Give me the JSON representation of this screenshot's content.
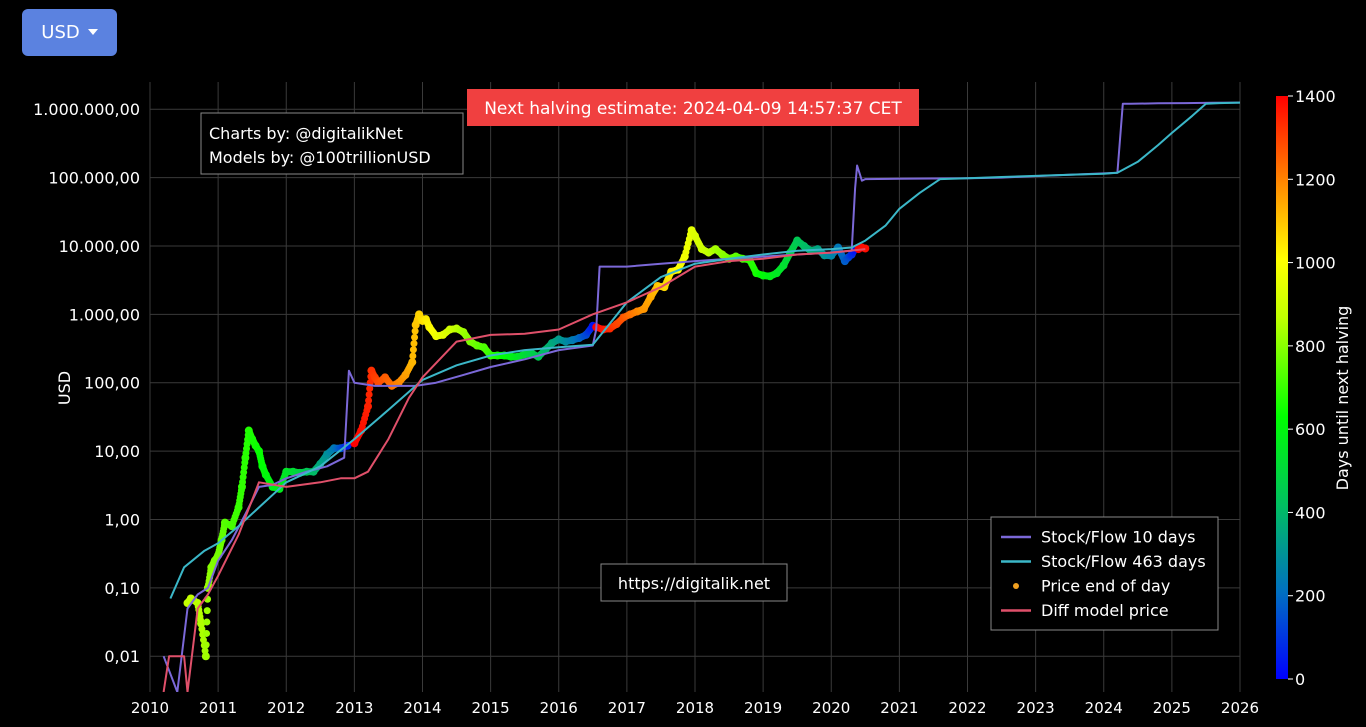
{
  "currency_selector": {
    "label": "USD"
  },
  "credits": {
    "line1": "Charts by: @digitalikNet",
    "line2": "Models by: @100trillionUSD"
  },
  "halving_banner": "Next halving estimate: 2024-04-09 14:57:37 CET",
  "watermark": "https://digitalik.net",
  "colors": {
    "stock_flow_10": "#7b68d8",
    "stock_flow_463": "#3bb7c8",
    "diff_model": "#e0506a",
    "banner_bg": "#f04040",
    "watermark_text": "#9fe35a"
  },
  "chart_data": {
    "type": "line",
    "ylabel": "USD",
    "yscale": "log",
    "ylim": [
      0.003,
      2500000
    ],
    "xlim": [
      2010,
      2026
    ],
    "x_ticks": [
      "2010",
      "2011",
      "2012",
      "2013",
      "2014",
      "2015",
      "2016",
      "2017",
      "2018",
      "2019",
      "2020",
      "2021",
      "2022",
      "2023",
      "2024",
      "2025",
      "2026"
    ],
    "y_ticks": [
      {
        "value": 0.01,
        "label": "0,01"
      },
      {
        "value": 0.1,
        "label": "0,10"
      },
      {
        "value": 1,
        "label": "1,00"
      },
      {
        "value": 10,
        "label": "10,00"
      },
      {
        "value": 100,
        "label": "100,00"
      },
      {
        "value": 1000,
        "label": "1.000,00"
      },
      {
        "value": 10000,
        "label": "10.000,00"
      },
      {
        "value": 100000,
        "label": "100.000,00"
      },
      {
        "value": 1000000,
        "label": "1.000.000,00"
      }
    ],
    "legend_position": "bottom-right",
    "colorbar": {
      "label": "Days until next halving",
      "range": [
        0,
        1400
      ],
      "ticks": [
        "0",
        "200",
        "400",
        "600",
        "800",
        "1000",
        "1200",
        "1400"
      ]
    },
    "series": [
      {
        "name": "Stock/Flow 10 days",
        "x": [
          2010.2,
          2010.4,
          2010.55,
          2010.7,
          2010.85,
          2011.0,
          2011.2,
          2011.4,
          2011.6,
          2011.8,
          2012.0,
          2012.3,
          2012.6,
          2012.85,
          2012.92,
          2013.0,
          2013.3,
          2013.6,
          2013.9,
          2014.2,
          2014.6,
          2015.0,
          2015.5,
          2016.0,
          2016.5,
          2016.55,
          2016.6,
          2017.0,
          2017.5,
          2018.0,
          2018.5,
          2019.0,
          2019.5,
          2020.0,
          2020.3,
          2020.35,
          2020.38,
          2020.45,
          2020.5,
          2021.0,
          2021.5,
          2022.0,
          2022.5,
          2023.0,
          2023.5,
          2024.0,
          2024.2,
          2024.28,
          2024.4,
          2024.8,
          2025.2,
          2025.6,
          2026.0
        ],
        "y": [
          0.01,
          0.003,
          0.05,
          0.08,
          0.1,
          0.25,
          0.5,
          1.2,
          3,
          3.2,
          4,
          5,
          6,
          8,
          150,
          100,
          90,
          90,
          90,
          100,
          130,
          170,
          220,
          300,
          350,
          600,
          5000,
          5000,
          5500,
          6000,
          6500,
          7000,
          7500,
          8000,
          8500,
          70000,
          150000,
          90000,
          95000,
          96000,
          97000,
          98000,
          100000,
          105000,
          110000,
          115000,
          118000,
          1200000,
          1200000,
          1220000,
          1230000,
          1240000,
          1250000
        ]
      },
      {
        "name": "Stock/Flow 463 days",
        "x": [
          2010.3,
          2010.5,
          2010.8,
          2011.0,
          2011.3,
          2011.6,
          2012.0,
          2012.5,
          2013.0,
          2013.5,
          2014.0,
          2014.5,
          2015.0,
          2015.5,
          2016.0,
          2016.5,
          2017.0,
          2017.5,
          2018.0,
          2018.5,
          2019.0,
          2019.5,
          2020.0,
          2020.3,
          2020.5,
          2020.8,
          2021.0,
          2021.3,
          2021.6,
          2022.0,
          2022.5,
          2023.0,
          2023.5,
          2024.0,
          2024.2,
          2024.5,
          2024.8,
          2025.0,
          2025.3,
          2025.5,
          2025.7,
          2026.0
        ],
        "y": [
          0.07,
          0.2,
          0.35,
          0.45,
          0.8,
          1.5,
          3.5,
          6,
          15,
          40,
          110,
          180,
          250,
          300,
          330,
          360,
          1500,
          3500,
          5500,
          6500,
          7500,
          8500,
          9000,
          9500,
          12000,
          20000,
          35000,
          60000,
          95000,
          98000,
          102000,
          106000,
          110000,
          114000,
          118000,
          170000,
          300000,
          450000,
          800000,
          1200000,
          1230000,
          1250000
        ]
      },
      {
        "name": "Diff model price",
        "x": [
          2010.2,
          2010.28,
          2010.3,
          2010.5,
          2010.55,
          2010.7,
          2010.85,
          2011.0,
          2011.3,
          2011.6,
          2012.0,
          2012.5,
          2012.8,
          2013.0,
          2013.2,
          2013.5,
          2013.8,
          2014.0,
          2014.5,
          2015.0,
          2015.5,
          2016.0,
          2016.5,
          2017.0,
          2017.5,
          2018.0,
          2018.5,
          2019.0,
          2019.5,
          2020.0,
          2020.5
        ],
        "y": [
          0.003,
          0.01,
          0.01,
          0.01,
          0.003,
          0.05,
          0.08,
          0.15,
          0.6,
          3.5,
          3,
          3.5,
          4,
          4,
          5,
          15,
          60,
          120,
          400,
          500,
          520,
          600,
          1000,
          1500,
          2500,
          5000,
          6000,
          6500,
          7500,
          8000,
          9000
        ]
      }
    ],
    "scatter": {
      "name": "Price end of day",
      "color_by": "Days until next halving",
      "points": [
        {
          "x": 2010.55,
          "y": 0.06,
          "d": 880
        },
        {
          "x": 2010.6,
          "y": 0.07,
          "d": 875
        },
        {
          "x": 2010.7,
          "y": 0.06,
          "d": 860
        },
        {
          "x": 2010.75,
          "y": 0.03,
          "d": 850
        },
        {
          "x": 2010.82,
          "y": 0.01,
          "d": 830
        },
        {
          "x": 2010.85,
          "y": 0.1,
          "d": 820
        },
        {
          "x": 2010.9,
          "y": 0.2,
          "d": 800
        },
        {
          "x": 2010.95,
          "y": 0.25,
          "d": 790
        },
        {
          "x": 2011.0,
          "y": 0.3,
          "d": 780
        },
        {
          "x": 2011.05,
          "y": 0.5,
          "d": 760
        },
        {
          "x": 2011.1,
          "y": 0.9,
          "d": 740
        },
        {
          "x": 2011.2,
          "y": 0.8,
          "d": 720
        },
        {
          "x": 2011.3,
          "y": 1.5,
          "d": 700
        },
        {
          "x": 2011.35,
          "y": 3,
          "d": 690
        },
        {
          "x": 2011.4,
          "y": 8,
          "d": 680
        },
        {
          "x": 2011.45,
          "y": 20,
          "d": 670
        },
        {
          "x": 2011.5,
          "y": 15,
          "d": 660
        },
        {
          "x": 2011.55,
          "y": 12,
          "d": 650
        },
        {
          "x": 2011.6,
          "y": 10,
          "d": 640
        },
        {
          "x": 2011.65,
          "y": 6,
          "d": 630
        },
        {
          "x": 2011.7,
          "y": 4.5,
          "d": 610
        },
        {
          "x": 2011.8,
          "y": 3,
          "d": 590
        },
        {
          "x": 2011.9,
          "y": 2.8,
          "d": 570
        },
        {
          "x": 2012.0,
          "y": 5,
          "d": 550
        },
        {
          "x": 2012.1,
          "y": 5,
          "d": 520
        },
        {
          "x": 2012.2,
          "y": 4.8,
          "d": 490
        },
        {
          "x": 2012.3,
          "y": 5,
          "d": 450
        },
        {
          "x": 2012.4,
          "y": 5,
          "d": 410
        },
        {
          "x": 2012.5,
          "y": 6.5,
          "d": 360
        },
        {
          "x": 2012.6,
          "y": 9,
          "d": 300
        },
        {
          "x": 2012.7,
          "y": 11,
          "d": 240
        },
        {
          "x": 2012.8,
          "y": 11,
          "d": 160
        },
        {
          "x": 2012.9,
          "y": 12,
          "d": 60
        },
        {
          "x": 2013.0,
          "y": 13,
          "d": 1400
        },
        {
          "x": 2013.1,
          "y": 20,
          "d": 1380
        },
        {
          "x": 2013.2,
          "y": 45,
          "d": 1350
        },
        {
          "x": 2013.25,
          "y": 150,
          "d": 1330
        },
        {
          "x": 2013.3,
          "y": 120,
          "d": 1310
        },
        {
          "x": 2013.35,
          "y": 100,
          "d": 1290
        },
        {
          "x": 2013.45,
          "y": 120,
          "d": 1260
        },
        {
          "x": 2013.55,
          "y": 90,
          "d": 1230
        },
        {
          "x": 2013.65,
          "y": 100,
          "d": 1200
        },
        {
          "x": 2013.75,
          "y": 130,
          "d": 1160
        },
        {
          "x": 2013.85,
          "y": 200,
          "d": 1120
        },
        {
          "x": 2013.9,
          "y": 700,
          "d": 1100
        },
        {
          "x": 2013.95,
          "y": 1000,
          "d": 1080
        },
        {
          "x": 2014.0,
          "y": 800,
          "d": 1060
        },
        {
          "x": 2014.05,
          "y": 850,
          "d": 1040
        },
        {
          "x": 2014.1,
          "y": 650,
          "d": 1020
        },
        {
          "x": 2014.2,
          "y": 480,
          "d": 980
        },
        {
          "x": 2014.3,
          "y": 500,
          "d": 950
        },
        {
          "x": 2014.4,
          "y": 600,
          "d": 910
        },
        {
          "x": 2014.5,
          "y": 620,
          "d": 870
        },
        {
          "x": 2014.6,
          "y": 550,
          "d": 830
        },
        {
          "x": 2014.7,
          "y": 400,
          "d": 790
        },
        {
          "x": 2014.8,
          "y": 350,
          "d": 760
        },
        {
          "x": 2014.9,
          "y": 330,
          "d": 730
        },
        {
          "x": 2015.0,
          "y": 250,
          "d": 700
        },
        {
          "x": 2015.1,
          "y": 250,
          "d": 660
        },
        {
          "x": 2015.2,
          "y": 250,
          "d": 630
        },
        {
          "x": 2015.3,
          "y": 240,
          "d": 600
        },
        {
          "x": 2015.4,
          "y": 240,
          "d": 560
        },
        {
          "x": 2015.5,
          "y": 260,
          "d": 520
        },
        {
          "x": 2015.6,
          "y": 270,
          "d": 480
        },
        {
          "x": 2015.7,
          "y": 240,
          "d": 450
        },
        {
          "x": 2015.8,
          "y": 300,
          "d": 410
        },
        {
          "x": 2015.9,
          "y": 380,
          "d": 370
        },
        {
          "x": 2016.0,
          "y": 430,
          "d": 330
        },
        {
          "x": 2016.1,
          "y": 400,
          "d": 290
        },
        {
          "x": 2016.2,
          "y": 420,
          "d": 250
        },
        {
          "x": 2016.3,
          "y": 450,
          "d": 200
        },
        {
          "x": 2016.4,
          "y": 500,
          "d": 140
        },
        {
          "x": 2016.5,
          "y": 680,
          "d": 40
        },
        {
          "x": 2016.55,
          "y": 650,
          "d": 1400
        },
        {
          "x": 2016.65,
          "y": 600,
          "d": 1370
        },
        {
          "x": 2016.75,
          "y": 620,
          "d": 1340
        },
        {
          "x": 2016.85,
          "y": 720,
          "d": 1300
        },
        {
          "x": 2016.95,
          "y": 900,
          "d": 1270
        },
        {
          "x": 2017.05,
          "y": 1000,
          "d": 1230
        },
        {
          "x": 2017.15,
          "y": 1100,
          "d": 1200
        },
        {
          "x": 2017.25,
          "y": 1200,
          "d": 1170
        },
        {
          "x": 2017.35,
          "y": 1800,
          "d": 1140
        },
        {
          "x": 2017.45,
          "y": 2600,
          "d": 1100
        },
        {
          "x": 2017.55,
          "y": 2500,
          "d": 1070
        },
        {
          "x": 2017.65,
          "y": 4200,
          "d": 1040
        },
        {
          "x": 2017.75,
          "y": 4500,
          "d": 1010
        },
        {
          "x": 2017.85,
          "y": 7000,
          "d": 980
        },
        {
          "x": 2017.95,
          "y": 17000,
          "d": 950
        },
        {
          "x": 2018.0,
          "y": 14000,
          "d": 930
        },
        {
          "x": 2018.1,
          "y": 9000,
          "d": 900
        },
        {
          "x": 2018.2,
          "y": 8000,
          "d": 870
        },
        {
          "x": 2018.3,
          "y": 9000,
          "d": 840
        },
        {
          "x": 2018.4,
          "y": 7500,
          "d": 810
        },
        {
          "x": 2018.5,
          "y": 6500,
          "d": 780
        },
        {
          "x": 2018.6,
          "y": 7000,
          "d": 750
        },
        {
          "x": 2018.7,
          "y": 6500,
          "d": 720
        },
        {
          "x": 2018.8,
          "y": 6300,
          "d": 690
        },
        {
          "x": 2018.9,
          "y": 4000,
          "d": 660
        },
        {
          "x": 2019.0,
          "y": 3700,
          "d": 620
        },
        {
          "x": 2019.1,
          "y": 3600,
          "d": 590
        },
        {
          "x": 2019.2,
          "y": 4000,
          "d": 560
        },
        {
          "x": 2019.3,
          "y": 5200,
          "d": 530
        },
        {
          "x": 2019.4,
          "y": 8000,
          "d": 490
        },
        {
          "x": 2019.5,
          "y": 12000,
          "d": 450
        },
        {
          "x": 2019.6,
          "y": 10000,
          "d": 420
        },
        {
          "x": 2019.7,
          "y": 8500,
          "d": 390
        },
        {
          "x": 2019.8,
          "y": 9000,
          "d": 350
        },
        {
          "x": 2019.9,
          "y": 7300,
          "d": 310
        },
        {
          "x": 2020.0,
          "y": 7200,
          "d": 270
        },
        {
          "x": 2020.1,
          "y": 9500,
          "d": 230
        },
        {
          "x": 2020.2,
          "y": 6000,
          "d": 180
        },
        {
          "x": 2020.25,
          "y": 6800,
          "d": 150
        },
        {
          "x": 2020.3,
          "y": 7500,
          "d": 90
        },
        {
          "x": 2020.35,
          "y": 9000,
          "d": 30
        },
        {
          "x": 2020.4,
          "y": 9000,
          "d": 1400
        },
        {
          "x": 2020.45,
          "y": 9500,
          "d": 1390
        },
        {
          "x": 2020.5,
          "y": 9200,
          "d": 1380
        }
      ]
    }
  }
}
